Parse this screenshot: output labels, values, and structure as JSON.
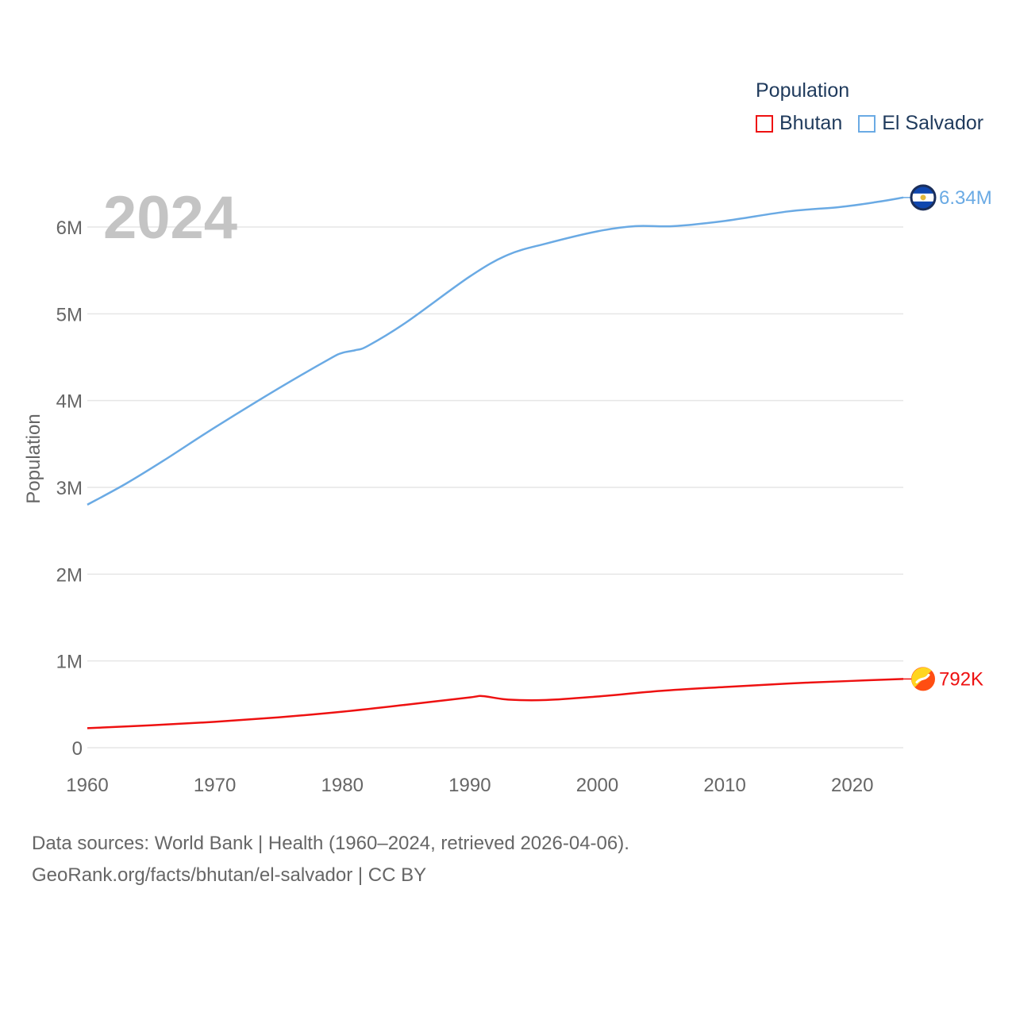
{
  "colors": {
    "bhutan": "#ee1111",
    "el_salvador": "#6aaae4",
    "grid": "#e6e6e6",
    "axis_text": "#666666",
    "year": "#c4c4c4",
    "legend_text": "#1f3a5c"
  },
  "legend": {
    "title": "Population",
    "items": [
      {
        "name": "Bhutan",
        "color": "#ee1111"
      },
      {
        "name": "El Salvador",
        "color": "#6aaae4"
      }
    ]
  },
  "current_year": "2024",
  "sources": {
    "line1": "Data sources: World Bank | Health (1960–2024, retrieved 2026-04-06).",
    "line2": "GeoRank.org/facts/bhutan/el-salvador | CC BY"
  },
  "chart_data": {
    "type": "line",
    "title": "",
    "xlabel": "",
    "ylabel": "Population",
    "xlim": [
      1960,
      2024
    ],
    "ylim": [
      0,
      6000000
    ],
    "x_ticks": [
      1960,
      1970,
      1980,
      1990,
      2000,
      2010,
      2020
    ],
    "x_tick_labels": [
      "1960",
      "1970",
      "1980",
      "1990",
      "2000",
      "2010",
      "2020"
    ],
    "y_ticks": [
      0,
      1000000,
      2000000,
      3000000,
      4000000,
      5000000,
      6000000
    ],
    "y_tick_labels": [
      "0",
      "1M",
      "2M",
      "3M",
      "4M",
      "5M",
      "6M"
    ],
    "grid": true,
    "legend_position": "top-right",
    "series": [
      {
        "name": "Bhutan",
        "color": "#ee1111",
        "end_label": "792K",
        "icon": "bhutan-flag-icon",
        "x": [
          1960,
          1965,
          1970,
          1975,
          1980,
          1985,
          1990,
          1991,
          1993,
          1996,
          2000,
          2005,
          2010,
          2015,
          2020,
          2024
        ],
        "values": [
          225000,
          258000,
          298000,
          350000,
          415000,
          495000,
          580000,
          595000,
          555000,
          550000,
          590000,
          655000,
          700000,
          740000,
          770000,
          792000
        ]
      },
      {
        "name": "El Salvador",
        "color": "#6aaae4",
        "end_label": "6.34M",
        "icon": "el-salvador-flag-icon",
        "x": [
          1960,
          1963,
          1966,
          1970,
          1975,
          1979,
          1980,
          1981,
          1982,
          1985,
          1990,
          1993,
          1996,
          2000,
          2003,
          2006,
          2010,
          2015,
          2019,
          2022,
          2024
        ],
        "values": [
          2800000,
          3040000,
          3310000,
          3690000,
          4140000,
          4480000,
          4550000,
          4580000,
          4630000,
          4900000,
          5430000,
          5680000,
          5810000,
          5950000,
          6010000,
          6010000,
          6070000,
          6180000,
          6230000,
          6290000,
          6340000
        ]
      }
    ]
  }
}
